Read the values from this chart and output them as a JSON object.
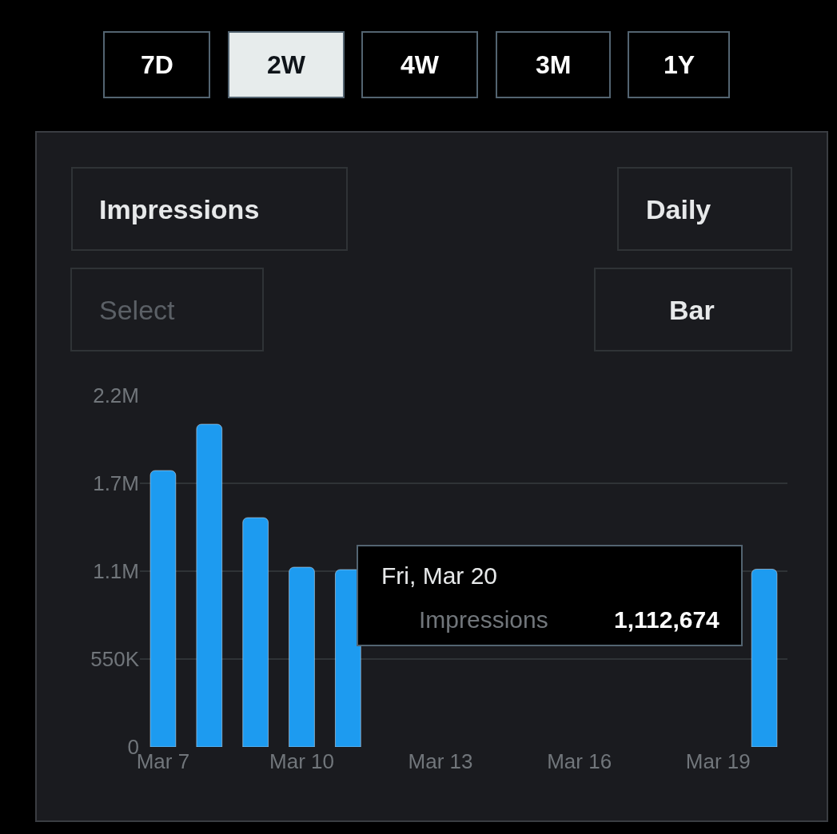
{
  "chart_data": {
    "type": "bar",
    "categories": [
      "Mar 7",
      null,
      null,
      "Mar 10",
      null,
      null,
      "Mar 13",
      null,
      null,
      "Mar 16",
      null,
      null,
      "Mar 19",
      null
    ],
    "values": [
      1730000,
      2020000,
      1435000,
      1125000,
      1110000,
      null,
      null,
      null,
      null,
      null,
      null,
      null,
      null,
      1112674
    ],
    "color": "#1d9bf0",
    "ylim": [
      0,
      2200000
    ],
    "yticks": [
      0,
      {
        "value": 550000,
        "label": "550K"
      },
      {
        "value": 1100000,
        "label": "1.1M"
      },
      {
        "value": 1650000,
        "label": "1.7M"
      },
      {
        "value": 2200000,
        "label": "2.2M"
      }
    ],
    "grid": "y",
    "legend": false,
    "annotations": [
      "7D",
      "2W",
      "4W",
      "3M",
      "1Y",
      "Impressions",
      "Daily",
      "Select",
      "Bar",
      "Fri, Mar 20",
      "Impressions",
      "1,112,674"
    ]
  }
}
